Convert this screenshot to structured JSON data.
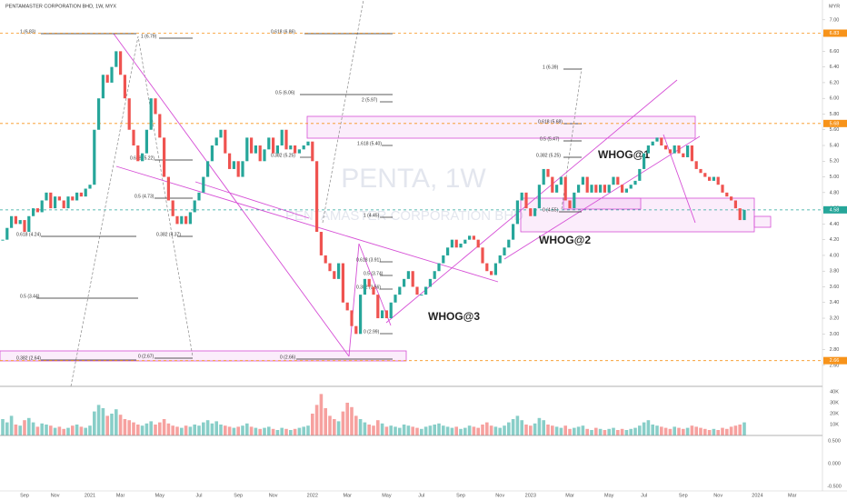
{
  "header": "PENTAMASTER CORPORATION BHD, 1W, MYX",
  "currency": "MYR",
  "chart_data": {
    "type": "candlestick",
    "watermark": "PENTA, 1W",
    "watermark_subtitle": "PENTAMASTER CORPORATION BHD",
    "categories": [
      null,
      null,
      null,
      null,
      null,
      "Sep",
      null,
      null,
      null,
      null,
      null,
      null,
      "Nov",
      null,
      null,
      null,
      null,
      null,
      null,
      null,
      "2021",
      null,
      null,
      null,
      null,
      null,
      null,
      "Mar",
      null,
      null,
      null,
      null,
      null,
      null,
      null,
      null,
      "May",
      null,
      null,
      null,
      null,
      null,
      null,
      null,
      null,
      "Jul",
      null,
      null,
      null,
      null,
      null,
      null,
      null,
      null,
      "Sep",
      null,
      null,
      null,
      null,
      null,
      null,
      null,
      "Nov",
      null,
      null,
      null,
      null,
      null,
      null,
      null,
      null,
      "2022",
      null,
      null,
      null,
      null,
      null,
      null,
      null,
      "Mar",
      null,
      null,
      null,
      null,
      null,
      null,
      null,
      null,
      "May",
      null,
      null,
      null,
      null,
      null,
      null,
      null,
      "Jul",
      null,
      null,
      null,
      null,
      null,
      null,
      null,
      null,
      "Sep",
      null,
      null,
      null,
      null,
      null,
      null,
      null,
      null,
      "Nov",
      null,
      null,
      null,
      null,
      null,
      null,
      "2023",
      null,
      null,
      null,
      null,
      null,
      null,
      null,
      null,
      "Mar",
      null,
      null,
      null,
      null,
      null,
      null,
      null,
      null,
      "May",
      null,
      null,
      null,
      null,
      null,
      null,
      null,
      "Jul",
      null,
      null,
      null,
      null,
      null,
      null,
      null,
      null,
      "Sep",
      null,
      null,
      null,
      null,
      null,
      null,
      null,
      "Nov",
      null,
      null,
      null,
      null,
      null,
      null,
      null,
      null,
      "2024",
      null,
      null,
      null,
      null,
      null,
      null,
      null,
      "Mar"
    ],
    "close": [
      4.2,
      4.35,
      4.5,
      4.4,
      4.45,
      4.3,
      4.5,
      4.6,
      4.55,
      4.7,
      4.8,
      4.6,
      4.75,
      4.7,
      4.6,
      4.75,
      4.7,
      4.8,
      4.75,
      4.85,
      4.9,
      5.6,
      6.0,
      6.3,
      6.2,
      6.4,
      6.6,
      6.3,
      6.0,
      5.6,
      5.4,
      5.2,
      5.3,
      5.6,
      6.0,
      5.8,
      5.5,
      5.0,
      4.7,
      4.5,
      4.4,
      4.5,
      4.4,
      4.55,
      4.7,
      4.8,
      5.0,
      5.2,
      5.4,
      5.5,
      5.6,
      5.3,
      5.1,
      5.2,
      5.0,
      5.2,
      5.5,
      5.3,
      5.4,
      5.2,
      5.35,
      5.5,
      5.3,
      5.4,
      5.6,
      5.35,
      5.4,
      5.3,
      5.35,
      5.4,
      5.45,
      5.2,
      4.3,
      4.0,
      3.9,
      3.8,
      3.7,
      3.9,
      3.4,
      3.3,
      3.1,
      3.0,
      3.5,
      3.7,
      3.6,
      3.5,
      3.2,
      3.3,
      3.2,
      3.4,
      3.5,
      3.6,
      3.7,
      3.8,
      3.6,
      3.5,
      3.5,
      3.6,
      3.7,
      3.8,
      3.9,
      4.0,
      4.1,
      4.2,
      4.1,
      4.15,
      4.2,
      4.25,
      4.2,
      4.1,
      3.9,
      3.8,
      3.75,
      3.9,
      4.0,
      4.1,
      4.2,
      4.4,
      4.7,
      4.8,
      4.6,
      4.5,
      4.6,
      4.9,
      5.1,
      5.0,
      4.8,
      4.9,
      5.0,
      4.7,
      4.6,
      4.8,
      4.9,
      5.0,
      4.8,
      4.9,
      4.8,
      4.9,
      4.8,
      4.9,
      5.0,
      4.9,
      4.8,
      4.85,
      4.9,
      4.95,
      5.1,
      5.3,
      5.4,
      5.45,
      5.5,
      5.4,
      5.35,
      5.3,
      5.4,
      5.3,
      5.25,
      5.4,
      5.2,
      5.1,
      5.05,
      5.0,
      4.95,
      5.0,
      4.9,
      4.8,
      4.75,
      4.7,
      4.6,
      4.45,
      4.58,
      null,
      null,
      null,
      null,
      null,
      null,
      null,
      null,
      null,
      null,
      null
    ],
    "volume": [
      15000,
      12000,
      18000,
      10000,
      9000,
      14000,
      16000,
      12000,
      8000,
      11000,
      10000,
      9000,
      7000,
      8000,
      6000,
      7000,
      9000,
      10000,
      8000,
      7000,
      9000,
      22000,
      28000,
      25000,
      18000,
      20000,
      24000,
      19000,
      15000,
      14000,
      12000,
      10000,
      9000,
      11000,
      13000,
      10000,
      12000,
      15000,
      11000,
      9000,
      8000,
      7000,
      9000,
      8000,
      10000,
      9000,
      12000,
      14000,
      11000,
      13000,
      10000,
      9000,
      8000,
      7000,
      8000,
      9000,
      11000,
      8000,
      7000,
      6000,
      7000,
      8000,
      6000,
      5000,
      7000,
      6000,
      5000,
      6000,
      7000,
      8000,
      9000,
      20000,
      28000,
      38000,
      25000,
      18000,
      15000,
      13000,
      22000,
      30000,
      26000,
      18000,
      15000,
      12000,
      10000,
      9000,
      14000,
      11000,
      8000,
      9000,
      8000,
      7000,
      10000,
      9000,
      8000,
      7000,
      6000,
      8000,
      9000,
      10000,
      11000,
      9000,
      8000,
      7000,
      8000,
      6000,
      7000,
      9000,
      8000,
      7000,
      10000,
      12000,
      9000,
      8000,
      7000,
      9000,
      12000,
      15000,
      18000,
      14000,
      10000,
      9000,
      11000,
      16000,
      14000,
      10000,
      9000,
      8000,
      7000,
      9000,
      6000,
      7000,
      8000,
      9000,
      6000,
      5000,
      7000,
      6000,
      5000,
      6000,
      7000,
      5000,
      6000,
      5000,
      6000,
      7000,
      9000,
      12000,
      14000,
      10000,
      9000,
      8000,
      7000,
      6000,
      8000,
      7000,
      6000,
      7000,
      9000,
      8000,
      7000,
      6000,
      5000,
      6000,
      5000,
      7000,
      6000,
      8000,
      9000,
      10000,
      12000,
      null,
      null,
      null,
      null,
      null,
      null,
      null,
      null,
      null,
      null,
      null
    ],
    "up_color": "#26a69a",
    "down_color": "#ef5350",
    "ylim": [
      2.39,
      7.16
    ],
    "yticks": [
      {
        "value": 2.6,
        "label": "2.60"
      },
      {
        "value": 2.8,
        "label": "2.80"
      },
      {
        "value": 3,
        "label": "3.00"
      },
      {
        "value": 3.2,
        "label": "3.20"
      },
      {
        "value": 3.4,
        "label": "3.40"
      },
      {
        "value": 3.6,
        "label": "3.60"
      },
      {
        "value": 3.8,
        "label": "3.80"
      },
      {
        "value": 4,
        "label": "4.00"
      },
      {
        "value": 4.2,
        "label": "4.20"
      },
      {
        "value": 4.4,
        "label": "4.40"
      },
      {
        "value": 4.6,
        "label": "4.60"
      },
      {
        "value": 4.8,
        "label": "4.80"
      },
      {
        "value": 5,
        "label": "5.00"
      },
      {
        "value": 5.2,
        "label": "5.20"
      },
      {
        "value": 5.4,
        "label": "5.40"
      },
      {
        "value": 5.6,
        "label": "5.60"
      },
      {
        "value": 5.8,
        "label": "5.80"
      },
      {
        "value": 6,
        "label": "6.00"
      },
      {
        "value": 6.2,
        "label": "6.20"
      },
      {
        "value": 6.4,
        "label": "6.40"
      },
      {
        "value": 6.6,
        "label": "6.60"
      },
      {
        "value": 6.8,
        "label": "6.80"
      },
      {
        "value": 7,
        "label": "7.00"
      }
    ],
    "price_lines": [
      {
        "value": 6.83,
        "color": "#f7931a"
      },
      {
        "value": 5.68,
        "color": "#f7931a"
      },
      {
        "value": 2.66,
        "color": "#f7931a"
      },
      {
        "value": 4.58,
        "color": "#26a69a"
      }
    ],
    "annotations": [
      "1 (6.83)",
      "1 (6.79)",
      "0.618 (6.86)",
      "0.5 (6.06)",
      "2 (5.97)",
      "1 (6.39)",
      "0.618 (5.68)",
      "0.5 (5.47)",
      "1.618 (5.40)",
      "0.382 (5.25)",
      "0.382 (5.25)",
      "0.618 (5.22)",
      "0.5 (4.73)",
      "0.618 (4.24)",
      "0.382 (4.37)",
      "1 (4.45)",
      "0 (4.55)",
      "0.618 (3.91)",
      "0.5 (3.74)",
      "0.382 (3.56)",
      "0.5 (3.44)",
      "0 (2.99)",
      "0.382 (2.64)",
      "0 (2.67)",
      "0 (2.66)"
    ],
    "pattern_labels": [
      "WHOG@1",
      "WHOG@2",
      "WHOG@3"
    ],
    "volume_ylim": [
      0,
      42500
    ],
    "volume_yticks": [
      {
        "value": 10000,
        "label": "10K"
      },
      {
        "value": 20000,
        "label": "20K"
      },
      {
        "value": 30000,
        "label": "30K"
      },
      {
        "value": 40000,
        "label": "40K"
      }
    ],
    "osc_ylim": [
      -0.6,
      0.6
    ],
    "osc_yticks": [
      {
        "value": 0.5,
        "label": "0.500"
      },
      {
        "value": 0,
        "label": "0.000"
      },
      {
        "value": -0.5,
        "label": "-0.500"
      }
    ]
  }
}
